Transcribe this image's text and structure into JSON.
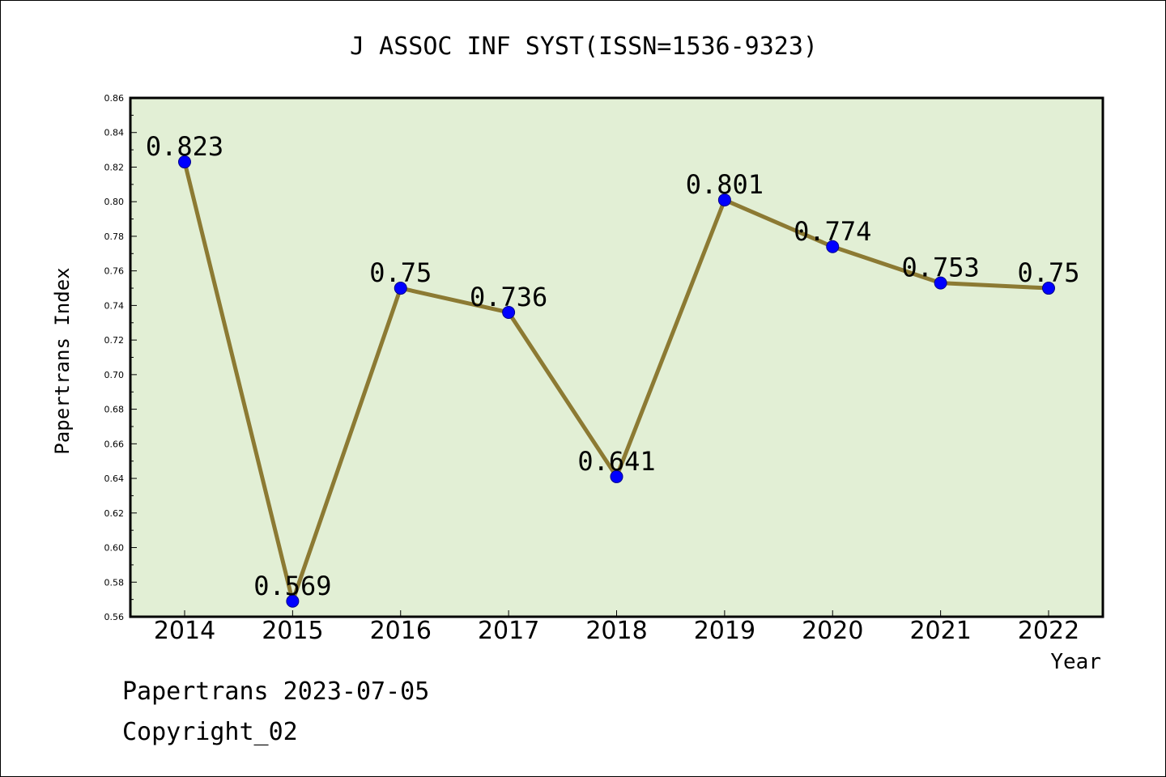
{
  "chart_data": {
    "type": "line",
    "title": "J ASSOC INF SYST(ISSN=1536-9323)",
    "xlabel": "Year",
    "ylabel": "Papertrans Index",
    "categories": [
      "2014",
      "2015",
      "2016",
      "2017",
      "2018",
      "2019",
      "2020",
      "2021",
      "2022"
    ],
    "series": [
      {
        "values": [
          0.823,
          0.569,
          0.75,
          0.736,
          0.641,
          0.801,
          0.774,
          0.753,
          0.75
        ],
        "labels": [
          "0.823",
          "0.569",
          "0.75",
          "0.736",
          "0.641",
          "0.801",
          "0.774",
          "0.753",
          "0.75"
        ]
      }
    ],
    "ylim": [
      0.56,
      0.86
    ],
    "yticks": [
      "0.56",
      "0.58",
      "0.60",
      "0.62",
      "0.64",
      "0.66",
      "0.68",
      "0.70",
      "0.72",
      "0.74",
      "0.76",
      "0.78",
      "0.80",
      "0.82",
      "0.84",
      "0.86"
    ],
    "grid": false,
    "colors": {
      "plot_background": "#e2efd5",
      "line": "#8c7a33",
      "marker": "#0000ff"
    }
  },
  "footer": {
    "line1": "Papertrans 2023-07-05",
    "line2": "Copyright_02"
  }
}
